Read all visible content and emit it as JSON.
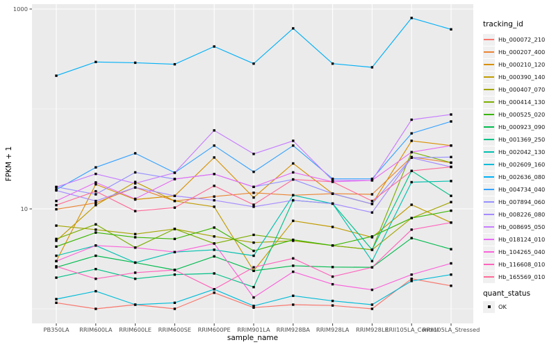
{
  "style": {
    "panel_bg": "#EBEBEB",
    "grid_color": "#FFFFFF",
    "tick_mark_color": "#333333",
    "tick_label_color": "#4D4D4D",
    "axis_title_color": "#000000",
    "legend_key_bg": "#F0F0F0",
    "point_color": "#000000"
  },
  "chart_data": {
    "type": "line",
    "title": "",
    "xlabel": "sample_name",
    "ylabel": "FPKM + 1",
    "y_scale": "log10",
    "ylim": [
      0.7,
      1150
    ],
    "y_major_ticks": [
      10,
      1000
    ],
    "y_tick_labels": [
      "10",
      "1000"
    ],
    "y_minor_gridlines": [
      1,
      100
    ],
    "grid": "white major+minor gridlines on grey panel",
    "legend_position": "right",
    "legend_title": "tracking_id",
    "point_marker": "black-square",
    "quant_status_legend": {
      "title": "quant_status",
      "items": [
        {
          "label": "OK",
          "marker": "black-square"
        }
      ]
    },
    "categories": [
      "PB350LA",
      "RRIM600LA",
      "RRIM600LE",
      "RRIM600SE",
      "RRIM600PE",
      "RRIM901LA",
      "RRIM928BA",
      "RRIM928LA",
      "RRIM928LE",
      "RRII105LA_Control",
      "RRII105LA_Stressed"
    ],
    "series": [
      {
        "name": "Hb_000072_210",
        "color": "#F8766D",
        "values": [
          1.15,
          1.0,
          1.1,
          1.0,
          1.45,
          1.03,
          1.1,
          1.08,
          1.0,
          2.0,
          1.7
        ]
      },
      {
        "name": "Hb_000207_400",
        "color": "#EA8331",
        "values": [
          9.9,
          11.5,
          16.4,
          12.0,
          13.3,
          14.5,
          13.7,
          14.2,
          14.0,
          33,
          29
        ]
      },
      {
        "name": "Hb_000210_120",
        "color": "#D89000",
        "values": [
          3.0,
          17.6,
          12.4,
          13.5,
          32.7,
          13.0,
          28.5,
          14.2,
          11.2,
          48,
          43
        ]
      },
      {
        "name": "Hb_000390_140",
        "color": "#C09B00",
        "values": [
          4.8,
          10.9,
          18.6,
          12.0,
          10.5,
          2.4,
          7.6,
          6.6,
          5.2,
          11.0,
          7.3
        ]
      },
      {
        "name": "Hb_000407_070",
        "color": "#A3A500",
        "values": [
          6.8,
          6.2,
          5.6,
          6.3,
          5.3,
          4.6,
          4.8,
          4.3,
          3.9,
          8.1,
          11.7
        ]
      },
      {
        "name": "Hb_000414_130",
        "color": "#7CAE00",
        "values": [
          5.0,
          7.0,
          4.1,
          6.3,
          4.5,
          5.5,
          4.9,
          4.3,
          3.9,
          37,
          29
        ]
      },
      {
        "name": "Hb_000525_020",
        "color": "#39B600",
        "values": [
          4.2,
          5.8,
          5.2,
          5.0,
          6.5,
          3.8,
          4.9,
          4.3,
          5.3,
          8.1,
          9.6
        ]
      },
      {
        "name": "Hb_000923_090",
        "color": "#00BB4E",
        "values": [
          2.6,
          3.4,
          2.9,
          2.45,
          3.35,
          2.4,
          2.7,
          2.62,
          2.6,
          5.1,
          3.95
        ]
      },
      {
        "name": "Hb_001369_250",
        "color": "#00C087",
        "values": [
          2.05,
          2.5,
          2.0,
          2.2,
          2.26,
          1.65,
          12.2,
          11.3,
          3.9,
          24.0,
          13.5
        ]
      },
      {
        "name": "Hb_002042_130",
        "color": "#00C0AF",
        "values": [
          3.4,
          4.3,
          2.9,
          3.7,
          3.9,
          3.4,
          13.7,
          11.3,
          3.0,
          18.5,
          19.0
        ]
      },
      {
        "name": "Hb_002609_160",
        "color": "#00BCD8",
        "values": [
          1.25,
          1.5,
          1.1,
          1.15,
          1.57,
          1.07,
          1.35,
          1.2,
          1.1,
          1.9,
          2.2
        ]
      },
      {
        "name": "Hb_002636_080",
        "color": "#00B0F6",
        "values": [
          215,
          295,
          290,
          280,
          422,
          284,
          640,
          284,
          261,
          813,
          626
        ]
      },
      {
        "name": "Hb_004734_040",
        "color": "#35A2FF",
        "values": [
          15.6,
          26,
          36,
          23,
          43,
          23.5,
          43,
          20,
          20,
          57,
          75
        ]
      },
      {
        "name": "Hb_007894_060",
        "color": "#9590FF",
        "values": [
          16.6,
          14.0,
          23.2,
          19.9,
          22.3,
          16.6,
          19.7,
          14.2,
          11.2,
          32.5,
          33
        ]
      },
      {
        "name": "Hb_008226_080",
        "color": "#A58AFF",
        "values": [
          15.3,
          12.0,
          16.4,
          13.5,
          12.2,
          10.5,
          12.2,
          11.3,
          9.2,
          32.5,
          26.3
        ]
      },
      {
        "name": "Hb_008695_050",
        "color": "#C77CFF",
        "values": [
          16.5,
          22.4,
          18.0,
          23.0,
          61,
          35.5,
          48,
          19.3,
          19.3,
          78,
          88
        ]
      },
      {
        "name": "Hb_018124_010",
        "color": "#E76BF3",
        "values": [
          12.0,
          18.4,
          12.6,
          19.9,
          22.3,
          16.6,
          23.2,
          18.7,
          19.3,
          37,
          43
        ]
      },
      {
        "name": "Hb_104265_040",
        "color": "#FA62DB",
        "values": [
          3.0,
          4.3,
          4.1,
          3.7,
          4.5,
          1.3,
          2.35,
          1.76,
          1.55,
          2.2,
          2.85
        ]
      },
      {
        "name": "Hb_116608_010",
        "color": "#FF62BC",
        "values": [
          2.66,
          2.0,
          2.3,
          2.45,
          1.57,
          2.6,
          3.2,
          2.1,
          2.6,
          6.2,
          7.3
        ]
      },
      {
        "name": "Hb_165569_010",
        "color": "#FF6A98",
        "values": [
          10.9,
          15.0,
          9.5,
          10.3,
          17.0,
          11.0,
          19.7,
          18.7,
          12.0,
          24.0,
          26.3
        ]
      }
    ]
  }
}
